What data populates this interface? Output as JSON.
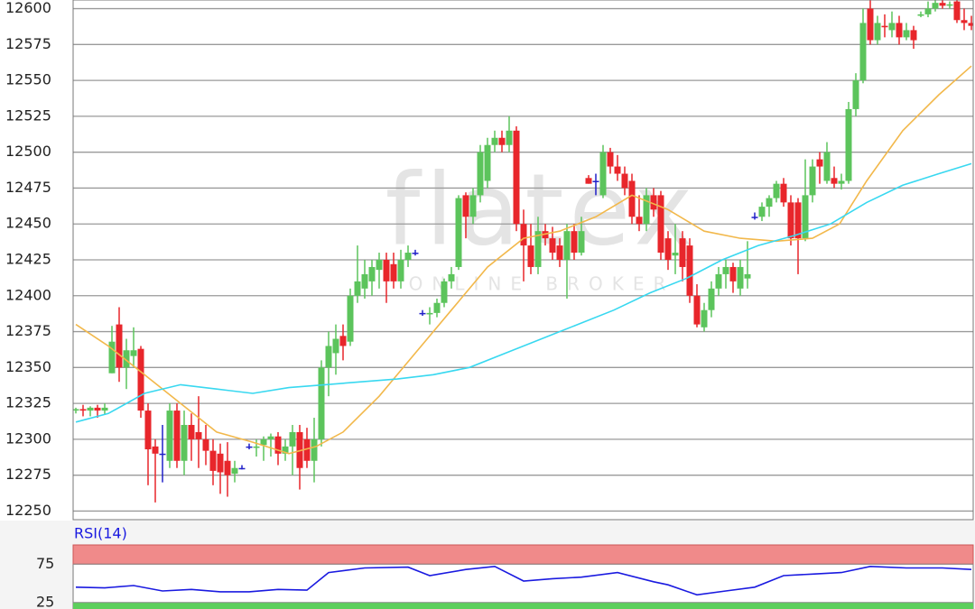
{
  "chart_data": {
    "type": "candlestick",
    "up_color": "#5cc45c",
    "down_color": "#e8262b",
    "doji_color": "#2020c8",
    "open": [
      12320,
      12321,
      12320,
      12322,
      12320,
      12346,
      12380,
      12350,
      12358,
      12363,
      12320,
      12295,
      12290,
      12285,
      12320,
      12285,
      12310,
      12305,
      12300,
      12292,
      12290,
      12285,
      12276,
      12280,
      12295,
      12294,
      12296,
      12300,
      12302,
      12290,
      12295,
      12305,
      12300,
      12285,
      12300,
      12350,
      12360,
      12372,
      12368,
      12400,
      12405,
      12410,
      12418,
      12425,
      12422,
      12410,
      12425,
      12430,
      12388,
      12387,
      12388,
      12395,
      12410,
      12420,
      12470,
      12455,
      12470,
      12480,
      12505,
      12510,
      12505,
      12515,
      12450,
      12435,
      12420,
      12445,
      12440,
      12435,
      12425,
      12445,
      12430,
      12482,
      12480,
      12470,
      12500,
      12490,
      12485,
      12480,
      12455,
      12450,
      12470,
      12470,
      12440,
      12428,
      12440,
      12435,
      12400,
      12378,
      12390,
      12405,
      12415,
      12420,
      12405,
      12412,
      12455,
      12455,
      12462,
      12468,
      12478,
      12465,
      12465,
      12440,
      12470,
      12495,
      12480,
      12482,
      12478,
      12480,
      12530,
      12550,
      12600,
      12578,
      12588,
      12585,
      12590,
      12580,
      12585,
      12595,
      12596,
      12600,
      12604,
      12602,
      12605,
      12592,
      12590
    ],
    "high": [
      12322,
      12324,
      12323,
      12324,
      12325,
      12379,
      12392,
      12370,
      12378,
      12365,
      12325,
      12300,
      12310,
      12325,
      12325,
      12320,
      12318,
      12330,
      12310,
      12300,
      12297,
      12298,
      12285,
      12282,
      12297,
      12300,
      12302,
      12304,
      12305,
      12300,
      12310,
      12310,
      12308,
      12315,
      12355,
      12375,
      12380,
      12380,
      12405,
      12435,
      12425,
      12425,
      12430,
      12430,
      12430,
      12432,
      12435,
      12432,
      12390,
      12392,
      12398,
      12412,
      12420,
      12470,
      12472,
      12475,
      12505,
      12510,
      12515,
      12515,
      12525,
      12518,
      12460,
      12450,
      12455,
      12450,
      12448,
      12440,
      12450,
      12450,
      12455,
      12484,
      12485,
      12505,
      12503,
      12498,
      12490,
      12485,
      12470,
      12475,
      12475,
      12473,
      12445,
      12450,
      12445,
      12440,
      12408,
      12395,
      12410,
      12420,
      12425,
      12423,
      12425,
      12438,
      12458,
      12465,
      12470,
      12480,
      12482,
      12470,
      12468,
      12495,
      12495,
      12500,
      12507,
      12490,
      12485,
      12535,
      12555,
      12600,
      12610,
      12595,
      12596,
      12598,
      12595,
      12590,
      12588,
      12598,
      12605,
      12606,
      12606,
      12605,
      12610,
      12600,
      12595
    ],
    "low": [
      12318,
      12316,
      12316,
      12315,
      12317,
      12346,
      12340,
      12335,
      12350,
      12315,
      12268,
      12256,
      12270,
      12280,
      12280,
      12275,
      12285,
      12280,
      12282,
      12268,
      12262,
      12260,
      12270,
      12279,
      12293,
      12288,
      12285,
      12288,
      12282,
      12285,
      12275,
      12265,
      12280,
      12270,
      12295,
      12330,
      12345,
      12355,
      12365,
      12395,
      12398,
      12400,
      12405,
      12395,
      12405,
      12405,
      12420,
      12428,
      12386,
      12380,
      12385,
      12392,
      12405,
      12418,
      12440,
      12450,
      12465,
      12475,
      12500,
      12500,
      12500,
      12445,
      12410,
      12415,
      12415,
      12435,
      12425,
      12420,
      12398,
      12425,
      12428,
      12478,
      12470,
      12468,
      12485,
      12480,
      12470,
      12450,
      12445,
      12445,
      12455,
      12425,
      12418,
      12415,
      12410,
      12395,
      12378,
      12375,
      12385,
      12400,
      12405,
      12402,
      12400,
      12405,
      12453,
      12452,
      12455,
      12465,
      12462,
      12435,
      12415,
      12438,
      12465,
      12478,
      12478,
      12475,
      12474,
      12478,
      12525,
      12548,
      12575,
      12575,
      12580,
      12580,
      12575,
      12578,
      12572,
      12594,
      12594,
      12598,
      12600,
      12600,
      12590,
      12585,
      12585
    ],
    "close": [
      12321,
      12320,
      12322,
      12320,
      12322,
      12368,
      12350,
      12362,
      12362,
      12320,
      12293,
      12290,
      12290,
      12320,
      12285,
      12310,
      12300,
      12300,
      12292,
      12278,
      12277,
      12275,
      12280,
      12280,
      12295,
      12295,
      12300,
      12302,
      12290,
      12295,
      12305,
      12280,
      12285,
      12300,
      12350,
      12365,
      12370,
      12365,
      12400,
      12410,
      12415,
      12420,
      12425,
      12410,
      12410,
      12425,
      12430,
      12430,
      12388,
      12388,
      12395,
      12410,
      12415,
      12468,
      12455,
      12470,
      12500,
      12505,
      12510,
      12505,
      12515,
      12450,
      12435,
      12420,
      12445,
      12440,
      12430,
      12425,
      12445,
      12430,
      12445,
      12478,
      12480,
      12500,
      12490,
      12485,
      12475,
      12455,
      12450,
      12470,
      12460,
      12430,
      12425,
      12430,
      12420,
      12400,
      12380,
      12390,
      12405,
      12415,
      12420,
      12410,
      12420,
      12415,
      12455,
      12462,
      12468,
      12478,
      12465,
      12440,
      12440,
      12470,
      12490,
      12490,
      12500,
      12478,
      12480,
      12530,
      12550,
      12590,
      12578,
      12590,
      12587,
      12590,
      12580,
      12585,
      12578,
      12596,
      12600,
      12604,
      12602,
      12603,
      12592,
      12590,
      12588
    ],
    "ylim": [
      12244,
      12606
    ],
    "yticks": [
      12250,
      12275,
      12300,
      12325,
      12350,
      12375,
      12400,
      12425,
      12450,
      12475,
      12500,
      12525,
      12550,
      12575,
      12600
    ],
    "grid": true,
    "overlays": [
      {
        "color": "#f2b84b",
        "x": [
          0,
          4.5,
          9.5,
          14.5,
          19.5,
          24.5,
          29.5,
          33.25,
          37,
          42,
          47,
          52,
          57,
          62,
          67,
          72,
          77,
          82,
          87,
          92,
          97,
          102,
          105.75,
          109.5,
          114.5,
          119.5,
          124
        ],
        "values": [
          12380,
          12365,
          12345,
          12325,
          12305,
          12298,
          12290,
          12295,
          12305,
          12330,
          12360,
          12390,
          12420,
          12440,
          12445,
          12455,
          12470,
          12460,
          12445,
          12440,
          12438,
          12440,
          12450,
          12480,
          12515,
          12540,
          12560
        ]
      },
      {
        "color": "#38d8f0",
        "x": [
          0,
          4.5,
          9.5,
          14.5,
          19.5,
          24.5,
          29.5,
          34.5,
          39.5,
          44.5,
          49.5,
          54.5,
          59.5,
          64.5,
          69.5,
          74.5,
          79.5,
          84.5,
          89.5,
          94.5,
          99.5,
          104.5,
          109.5,
          114.5,
          119.5,
          124
        ],
        "values": [
          12312,
          12318,
          12332,
          12338,
          12335,
          12332,
          12336,
          12338,
          12340,
          12342,
          12345,
          12350,
          12360,
          12370,
          12380,
          12390,
          12402,
          12412,
          12425,
          12435,
          12442,
          12450,
          12465,
          12477,
          12485,
          12492
        ]
      }
    ],
    "watermark": {
      "title": "flatex",
      "subtitle": "ONLINE BROKER"
    },
    "indicator": {
      "title": "RSI(14)",
      "color": "#1a1ae0",
      "x": [
        0,
        4,
        8,
        12,
        16,
        20,
        24,
        28,
        32,
        35,
        40,
        46,
        49,
        54,
        58,
        62,
        66,
        70,
        75,
        80,
        82,
        86,
        90,
        94,
        98,
        102,
        106,
        110,
        115,
        120,
        124
      ],
      "values": [
        45,
        44,
        47,
        40,
        42,
        39,
        39,
        42,
        41,
        64,
        70,
        71,
        60,
        68,
        72,
        53,
        56,
        58,
        64,
        52,
        48,
        35,
        40,
        45,
        60,
        62,
        64,
        72,
        70,
        70,
        68
      ],
      "ylim": [
        20,
        100
      ],
      "yticks": [
        75,
        25
      ],
      "upper_color": "#f08a8a",
      "lower_color": "#5ccf5c"
    }
  }
}
